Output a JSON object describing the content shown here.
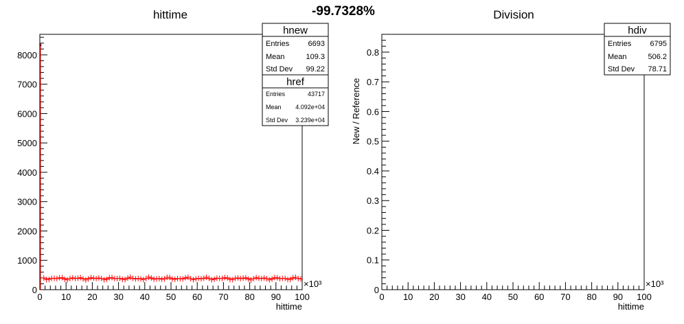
{
  "header": {
    "percent_text": "-99.7328%"
  },
  "left_panel": {
    "title": "hittime",
    "x_label": "hittime",
    "x_exponent": "×10³",
    "x_ticks": [
      "0",
      "10",
      "20",
      "30",
      "40",
      "50",
      "60",
      "70",
      "80",
      "90",
      "100"
    ],
    "y_ticks": [
      "0",
      "1000",
      "2000",
      "3000",
      "4000",
      "5000",
      "6000",
      "7000",
      "8000"
    ],
    "stats_hnew": {
      "title": "hnew",
      "entries_label": "Entries",
      "entries_value": "6693",
      "mean_label": "Mean",
      "mean_value": "109.3",
      "std_label": "Std Dev",
      "std_value": "99.22"
    },
    "stats_href": {
      "title": "href",
      "entries_label": "Entries",
      "entries_value": "43717",
      "mean_label": "Mean",
      "mean_value": "4.092e+04",
      "std_label": "Std Dev",
      "std_value": "3.239e+04"
    }
  },
  "right_panel": {
    "title": "Division",
    "x_label": "hittime",
    "y_label": "New / Reference",
    "x_exponent": "×10³",
    "x_ticks": [
      "0",
      "10",
      "20",
      "30",
      "40",
      "50",
      "60",
      "70",
      "80",
      "90",
      "100"
    ],
    "y_ticks": [
      "0",
      "0.1",
      "0.2",
      "0.3",
      "0.4",
      "0.5",
      "0.6",
      "0.7",
      "0.8"
    ],
    "stats_hdiv": {
      "title": "hdiv",
      "entries_label": "Entries",
      "entries_value": "6795",
      "mean_label": "Mean",
      "mean_value": "506.2",
      "std_label": "Std Dev",
      "std_value": "78.71"
    }
  },
  "colors": {
    "href_series": "#ff0000",
    "axis": "#000000",
    "background": "#ffffff"
  },
  "chart_data": [
    {
      "type": "scatter",
      "title": "hittime",
      "xlabel": "hittime",
      "ylabel": "",
      "x_unit_multiplier": 1000,
      "xlim": [
        0,
        100
      ],
      "ylim": [
        0,
        8700
      ],
      "grid": false,
      "series": [
        {
          "name": "href",
          "color": "#ff0000",
          "x": [
            0.25,
            1.5
          ],
          "y": [
            8300,
            380
          ]
        }
      ]
    },
    {
      "type": "scatter",
      "title": "Division",
      "xlabel": "hittime",
      "ylabel": "New / Reference",
      "x_unit_multiplier": 1000,
      "xlim": [
        0,
        100
      ],
      "ylim": [
        0,
        0.86
      ],
      "grid": false,
      "series": []
    }
  ]
}
